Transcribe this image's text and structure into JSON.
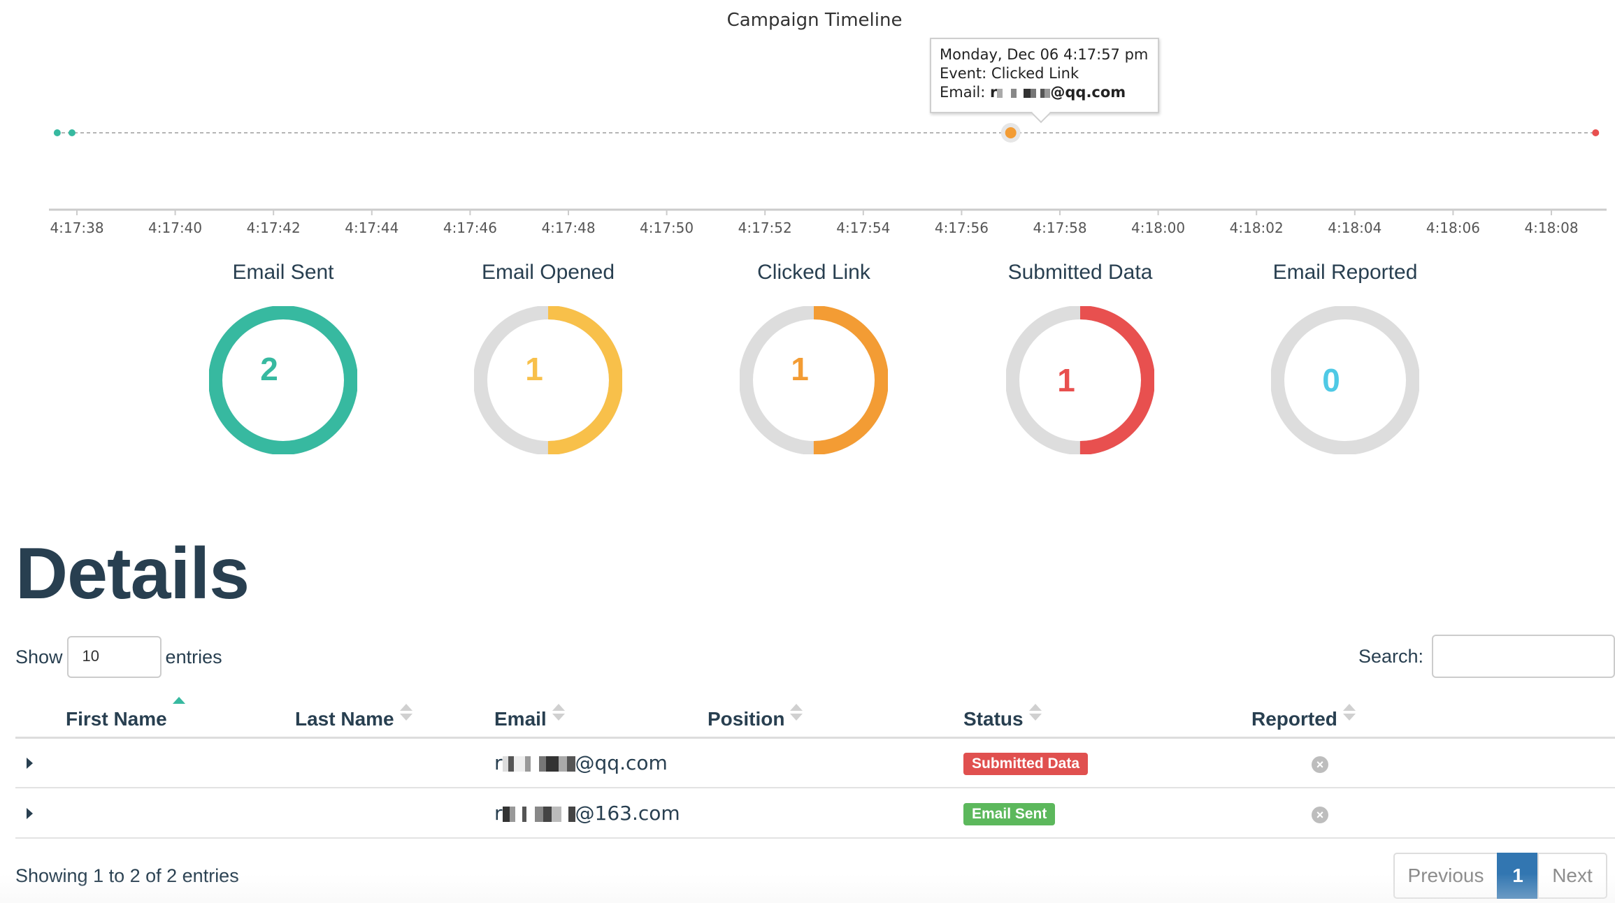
{
  "timeline": {
    "title": "Campaign Timeline",
    "ticks": [
      "4:17:38",
      "4:17:40",
      "4:17:42",
      "4:17:44",
      "4:17:46",
      "4:17:48",
      "4:17:50",
      "4:17:52",
      "4:17:54",
      "4:17:56",
      "4:17:58",
      "4:18:00",
      "4:18:02",
      "4:18:04",
      "4:18:06",
      "4:18:08"
    ],
    "events": [
      {
        "time": "4:17:37.6",
        "type": "sent",
        "color": "#37b9a0"
      },
      {
        "time": "4:17:37.9",
        "type": "sent",
        "color": "#37b9a0"
      },
      {
        "time": "4:17:57.0",
        "type": "clicked",
        "color": "#f39c34"
      },
      {
        "time": "4:18:08.9",
        "type": "submitted",
        "color": "#e8504f"
      }
    ],
    "tooltip": {
      "date": "Monday, Dec 06 4:17:57 pm",
      "event": "Event: Clicked Link",
      "email_label": "Email:",
      "email_prefix": "r",
      "email_suffix": "@qq.com"
    }
  },
  "stats": [
    {
      "title": "Email Sent",
      "value": "2",
      "fraction": 1.0,
      "color": "#37b9a0"
    },
    {
      "title": "Email Opened",
      "value": "1",
      "fraction": 0.5,
      "color": "#f8c04a"
    },
    {
      "title": "Clicked Link",
      "value": "1",
      "fraction": 0.5,
      "color": "#f39c34"
    },
    {
      "title": "Submitted Data",
      "value": "1",
      "fraction": 0.5,
      "color": "#e8504f"
    },
    {
      "title": "Email Reported",
      "value": "0",
      "fraction": 0.0,
      "color": "#4fc9e5"
    }
  ],
  "details": {
    "heading": "Details",
    "show_label": "Show",
    "page_length": "10",
    "entries_label": "entries",
    "search_label": "Search:",
    "search_value": ""
  },
  "table": {
    "columns": [
      "First Name",
      "Last Name",
      "Email",
      "Position",
      "Status",
      "Reported"
    ],
    "rows": [
      {
        "first_name": "",
        "last_name": "",
        "email_prefix": "r",
        "email_suffix": "@qq.com",
        "position": "",
        "status": "Submitted Data",
        "status_color": "#e0504f",
        "reported": "false"
      },
      {
        "first_name": "",
        "last_name": "",
        "email_prefix": "r",
        "email_suffix": "@163.com",
        "position": "",
        "status": "Email Sent",
        "status_color": "#5cb85c",
        "reported": "false"
      }
    ]
  },
  "pagination": {
    "info": "Showing 1 to 2 of 2 entries",
    "previous": "Previous",
    "current": "1",
    "next": "Next"
  }
}
